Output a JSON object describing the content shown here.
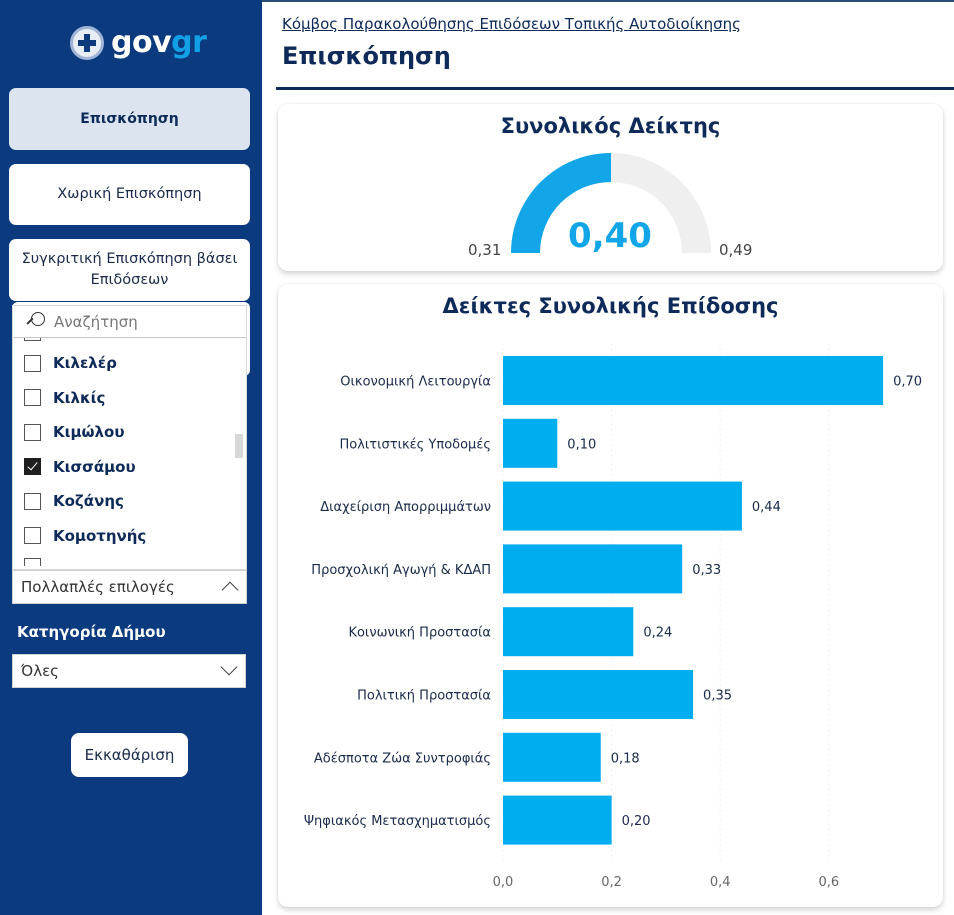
{
  "sidebar": {
    "logo": {
      "primary": "gov",
      "secondary": "gr",
      "emblem": "greek-coat-of-arms-icon"
    },
    "nav": [
      {
        "label": "Επισκόπηση",
        "active": true
      },
      {
        "label": "Χωρική Επισκόπηση",
        "active": false
      },
      {
        "label": "Συγκριτική Επισκόπηση βάσει Επιδόσεων",
        "active": false
      }
    ],
    "municipality_slicer": {
      "search_placeholder": "Αναζήτηση",
      "items": [
        {
          "label": "Κιλελέρ",
          "checked": false
        },
        {
          "label": "Κιλκίς",
          "checked": false
        },
        {
          "label": "Κιμώλου",
          "checked": false
        },
        {
          "label": "Κισσάμου",
          "checked": true
        },
        {
          "label": "Κοζάνης",
          "checked": false
        },
        {
          "label": "Κομοτηνής",
          "checked": false
        }
      ],
      "selection_summary": "Πολλαπλές επιλογές"
    },
    "category": {
      "label": "Κατηγορία Δήμου",
      "value": "Όλες"
    },
    "clear_label": "Εκκαθάριση"
  },
  "header": {
    "breadcrumb": "Κόμβος Παρακολούθησης Επιδόσεων Τοπικής Αυτοδιοίκησης",
    "title": "Επισκόπηση"
  },
  "colors": {
    "sidebar": "#0b3a7e",
    "accent": "#12a6e8",
    "title": "#0d2a58",
    "gauge_track": "#efefef"
  },
  "gauge": {
    "title": "Συνολικός Δείκτης",
    "min": 0.31,
    "max": 0.49,
    "value": 0.4,
    "min_label": "0,31",
    "max_label": "0,49",
    "value_label": "0,40"
  },
  "chart_data": {
    "type": "bar",
    "orientation": "horizontal",
    "title": "Δείκτες Συνολικής Επίδοσης",
    "categories": [
      "Οικονομική Λειτουργία",
      "Πολιτιστικές Υποδομές",
      "Διαχείριση Απορριμμάτων",
      "Προσχολική Αγωγή & ΚΔΑΠ",
      "Κοινωνική Προστασία",
      "Πολιτική Προστασία",
      "Αδέσποτα Ζώα Συντροφιάς",
      "Ψηφιακός Μετασχηματισμός"
    ],
    "values": [
      0.7,
      0.1,
      0.44,
      0.33,
      0.24,
      0.35,
      0.18,
      0.2
    ],
    "value_labels": [
      "0,70",
      "0,10",
      "0,44",
      "0,33",
      "0,24",
      "0,35",
      "0,18",
      "0,20"
    ],
    "xlim": [
      0,
      0.76
    ],
    "xticks": [
      0,
      0.2,
      0.4,
      0.6
    ],
    "xtick_labels": [
      "0,0",
      "0,2",
      "0,4",
      "0,6"
    ],
    "xlabel": "",
    "ylabel": "",
    "grid": true,
    "legend": "none"
  }
}
